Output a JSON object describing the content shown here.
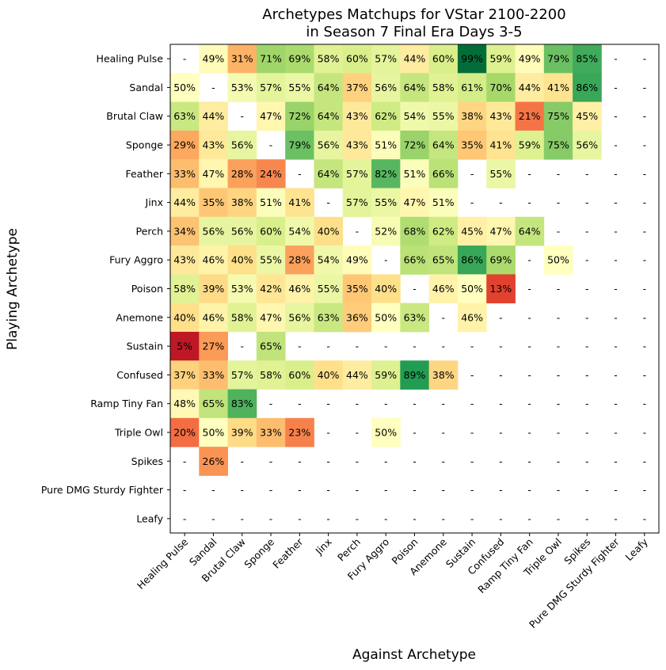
{
  "chart_data": {
    "type": "heatmap",
    "title_lines": [
      "Archetypes Matchups for VStar 2100-2200",
      "in Season 7 Final Era Days 3-5"
    ],
    "xlabel": "Against Archetype",
    "ylabel": "Playing Archetype",
    "rows": [
      "Healing Pulse",
      "Sandal",
      "Brutal Claw",
      "Sponge",
      "Feather",
      "Jinx",
      "Perch",
      "Fury Aggro",
      "Poison",
      "Anemone",
      "Sustain",
      "Confused",
      "Ramp Tiny Fan",
      "Triple Owl",
      "Spikes",
      "Pure DMG Sturdy Fighter",
      "Leafy"
    ],
    "columns": [
      "Healing Pulse",
      "Sandal",
      "Brutal Claw",
      "Sponge",
      "Feather",
      "Jinx",
      "Perch",
      "Fury Aggro",
      "Poison",
      "Anemone",
      "Sustain",
      "Confused",
      "Ramp Tiny Fan",
      "Triple Owl",
      "Spikes",
      "Pure DMG Sturdy Fighter",
      "Leafy"
    ],
    "missing_label": "-",
    "value_suffix": "%",
    "colormap": "RdYlGn",
    "value_range": [
      0,
      100
    ],
    "values": [
      [
        null,
        49,
        31,
        71,
        69,
        58,
        60,
        57,
        44,
        60,
        99,
        59,
        49,
        79,
        85,
        null,
        null
      ],
      [
        50,
        null,
        53,
        57,
        55,
        64,
        37,
        56,
        64,
        58,
        61,
        70,
        44,
        41,
        86,
        null,
        null
      ],
      [
        63,
        44,
        null,
        47,
        72,
        64,
        43,
        62,
        54,
        55,
        38,
        43,
        21,
        75,
        45,
        null,
        null
      ],
      [
        29,
        43,
        56,
        null,
        79,
        56,
        43,
        51,
        72,
        64,
        35,
        41,
        59,
        75,
        56,
        null,
        null
      ],
      [
        33,
        47,
        28,
        24,
        null,
        64,
        57,
        82,
        51,
        66,
        null,
        55,
        null,
        null,
        null,
        null,
        null
      ],
      [
        44,
        35,
        38,
        51,
        41,
        null,
        57,
        55,
        47,
        51,
        null,
        null,
        null,
        null,
        null,
        null,
        null
      ],
      [
        34,
        56,
        56,
        60,
        54,
        40,
        null,
        52,
        68,
        62,
        45,
        47,
        64,
        null,
        null,
        null,
        null
      ],
      [
        43,
        46,
        40,
        55,
        28,
        54,
        49,
        null,
        66,
        65,
        86,
        69,
        null,
        50,
        null,
        null,
        null
      ],
      [
        58,
        39,
        53,
        42,
        46,
        55,
        35,
        40,
        null,
        46,
        50,
        13,
        null,
        null,
        null,
        null,
        null
      ],
      [
        40,
        46,
        58,
        47,
        56,
        63,
        36,
        50,
        63,
        null,
        46,
        null,
        null,
        null,
        null,
        null,
        null
      ],
      [
        5,
        27,
        null,
        65,
        null,
        null,
        null,
        null,
        null,
        null,
        null,
        null,
        null,
        null,
        null,
        null,
        null
      ],
      [
        37,
        33,
        57,
        58,
        60,
        40,
        44,
        59,
        89,
        38,
        null,
        null,
        null,
        null,
        null,
        null,
        null
      ],
      [
        48,
        65,
        83,
        null,
        null,
        null,
        null,
        null,
        null,
        null,
        null,
        null,
        null,
        null,
        null,
        null,
        null
      ],
      [
        20,
        50,
        39,
        33,
        23,
        null,
        null,
        50,
        null,
        null,
        null,
        null,
        null,
        null,
        null,
        null,
        null
      ],
      [
        null,
        26,
        null,
        null,
        null,
        null,
        null,
        null,
        null,
        null,
        null,
        null,
        null,
        null,
        null,
        null,
        null
      ],
      [
        null,
        null,
        null,
        null,
        null,
        null,
        null,
        null,
        null,
        null,
        null,
        null,
        null,
        null,
        null,
        null,
        null
      ],
      [
        null,
        null,
        null,
        null,
        null,
        null,
        null,
        null,
        null,
        null,
        null,
        null,
        null,
        null,
        null,
        null,
        null
      ]
    ]
  }
}
